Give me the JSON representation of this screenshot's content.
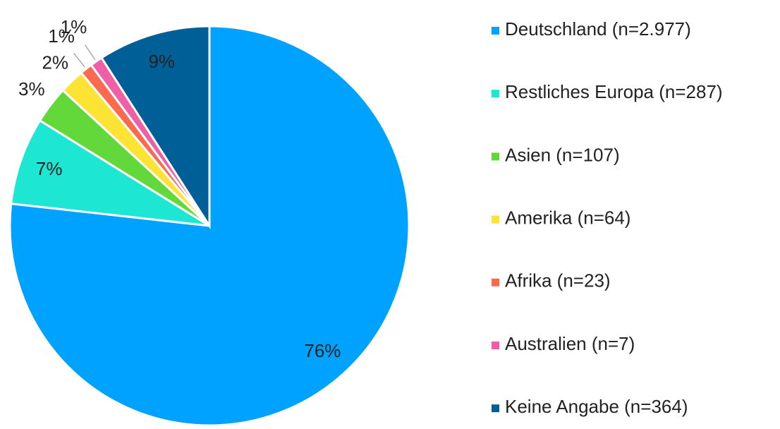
{
  "chart_data": {
    "type": "pie",
    "categories": [
      "Deutschland (n=2.977)",
      "Restliches Europa (n=287)",
      "Asien (n=107)",
      "Amerika (n=64)",
      "Afrika (n=23)",
      "Australien (n=7)",
      "Keine Angabe (n=364)"
    ],
    "values": [
      76,
      7,
      3,
      2,
      1,
      1,
      9
    ],
    "value_labels": [
      "76%",
      "7%",
      "3%",
      "2%",
      "1%",
      "1%",
      "9%"
    ],
    "colors": [
      "#00a2ff",
      "#1de6d2",
      "#62d83a",
      "#fde334",
      "#fb6a4f",
      "#ef5fa7",
      "#005f96"
    ],
    "legend": "right"
  }
}
